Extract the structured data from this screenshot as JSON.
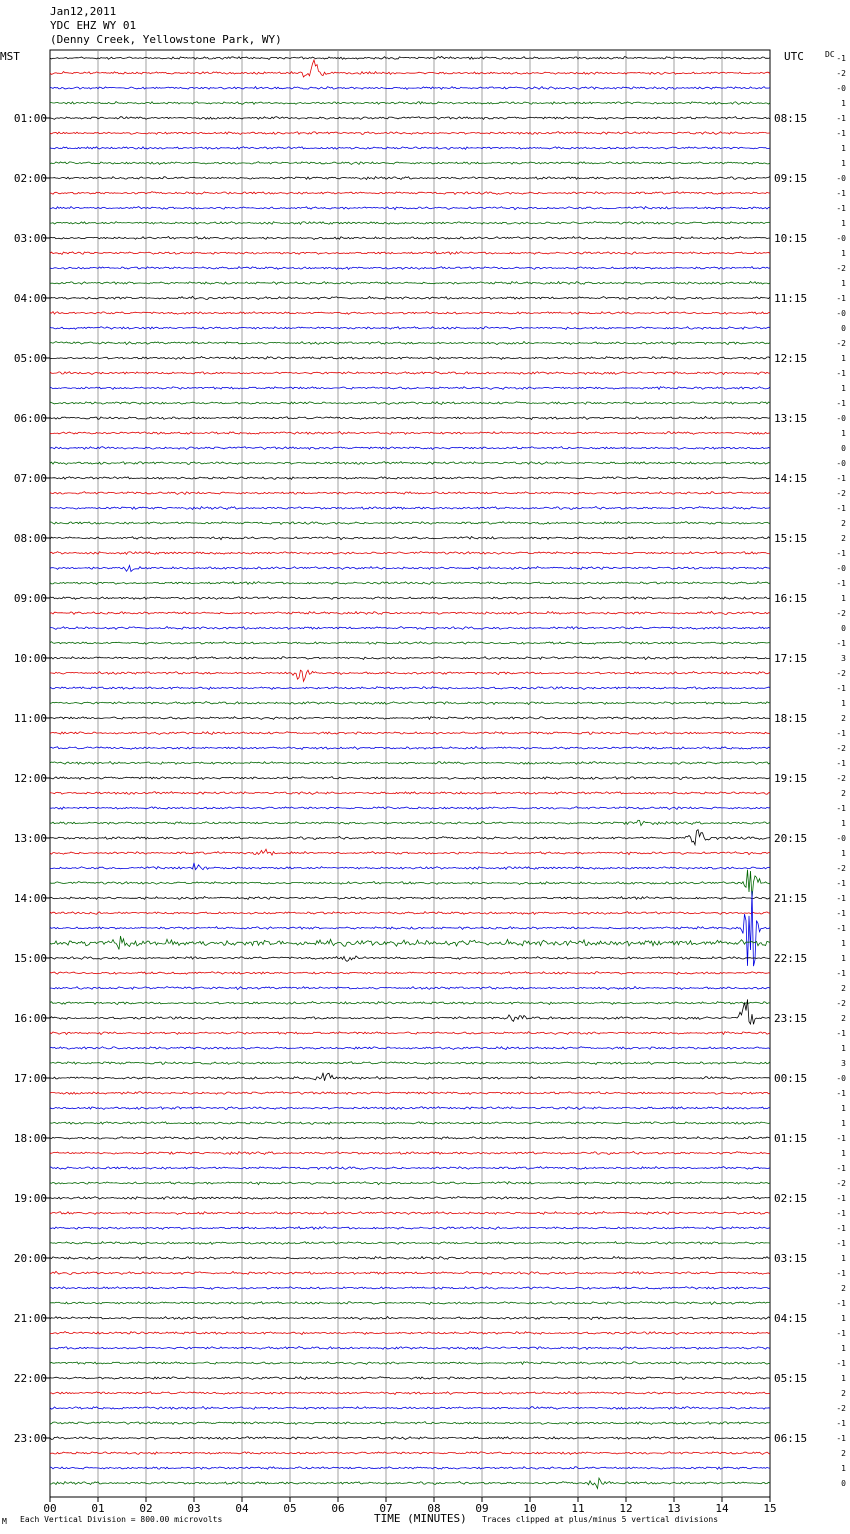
{
  "header": {
    "date": "Jan12,2011",
    "station": "YDC EHZ WY 01",
    "location": "(Denny Creek, Yellowstone Park, WY)"
  },
  "left_zone": "MST",
  "right_zone": "UTC",
  "dc_label": "DC",
  "footer": {
    "scale": "Each Vertical Division =  800.00 microvolts",
    "xlabel": "TIME (MINUTES)",
    "clip": "Traces clipped at plus/minus 5 vertical divisions",
    "corner": "M"
  },
  "colors": [
    "#000000",
    "#e00000",
    "#0000e0",
    "#006600"
  ],
  "chart_data": {
    "type": "line",
    "title": "YDC EHZ WY 01",
    "xlabel": "TIME (MINUTES)",
    "x_ticks": [
      "00",
      "01",
      "02",
      "03",
      "04",
      "05",
      "06",
      "07",
      "08",
      "09",
      "10",
      "11",
      "12",
      "13",
      "14",
      "15"
    ],
    "xlim": [
      0,
      15
    ],
    "left_hour_labels": [
      "01:00",
      "02:00",
      "03:00",
      "04:00",
      "05:00",
      "06:00",
      "07:00",
      "08:00",
      "09:00",
      "10:00",
      "11:00",
      "12:00",
      "13:00",
      "14:00",
      "15:00",
      "16:00",
      "17:00",
      "18:00",
      "19:00",
      "20:00",
      "21:00",
      "22:00",
      "23:00"
    ],
    "right_hour_labels": [
      "08:15",
      "09:15",
      "10:15",
      "11:15",
      "12:15",
      "13:15",
      "14:15",
      "15:15",
      "16:15",
      "17:15",
      "18:15",
      "19:15",
      "20:15",
      "21:15",
      "22:15",
      "23:15",
      "00:15",
      "01:15",
      "02:15",
      "03:15",
      "04:15",
      "05:15",
      "06:15"
    ],
    "trace_count": 96,
    "dc_offsets": [
      "-1",
      "-2",
      "-0",
      "1",
      "-1",
      "-1",
      "1",
      "1",
      "-0",
      "-1",
      "-1",
      "1",
      "-0",
      "1",
      "-2",
      "1",
      "-1",
      "-0",
      "0",
      "-2",
      "1",
      "-1",
      "1",
      "-1",
      "-0",
      "1",
      "0",
      "-0",
      "-1",
      "-2",
      "-1",
      "2",
      "2",
      "-1",
      "-0",
      "-1",
      "1",
      "-2",
      "0",
      "-1",
      "3",
      "-2",
      "-1",
      "1",
      "2",
      "-1",
      "-2",
      "-1",
      "-2",
      "2",
      "-1",
      "1",
      "-0",
      "1",
      "-2",
      "-1",
      "-1",
      "-1",
      "-1",
      "1",
      "1",
      "-1",
      "2",
      "-2",
      "2",
      "-1",
      "1",
      "3",
      "-0",
      "-1",
      "1",
      "1",
      "-1",
      "1",
      "-1",
      "-2",
      "-1",
      "-1",
      "-1",
      "-1",
      "1",
      "-1",
      "2",
      "-1",
      "1",
      "-1",
      "1",
      "-1",
      "1",
      "2",
      "-2",
      "-1",
      "-1",
      "2",
      "1",
      "0"
    ],
    "events": [
      {
        "trace": 1,
        "minute": 5.5,
        "amp": 10
      },
      {
        "trace": 34,
        "minute": 1.6,
        "amp": 4
      },
      {
        "trace": 41,
        "minute": 5.3,
        "amp": 8
      },
      {
        "trace": 51,
        "minute": 12.3,
        "amp": 3
      },
      {
        "trace": 52,
        "minute": 13.5,
        "amp": 8
      },
      {
        "trace": 53,
        "minute": 4.5,
        "amp": 4
      },
      {
        "trace": 54,
        "minute": 3.0,
        "amp": 4
      },
      {
        "trace": 55,
        "minute": 14.6,
        "amp": 20
      },
      {
        "trace": 58,
        "minute": 14.6,
        "amp": 35
      },
      {
        "trace": 59,
        "minute": 1.5,
        "amp": 8
      },
      {
        "trace": 60,
        "minute": 6.2,
        "amp": 4
      },
      {
        "trace": 64,
        "minute": 9.7,
        "amp": 3
      },
      {
        "trace": 64,
        "minute": 14.5,
        "amp": 18
      },
      {
        "trace": 68,
        "minute": 5.7,
        "amp": 5
      },
      {
        "trace": 95,
        "minute": 11.4,
        "amp": 4
      }
    ]
  }
}
